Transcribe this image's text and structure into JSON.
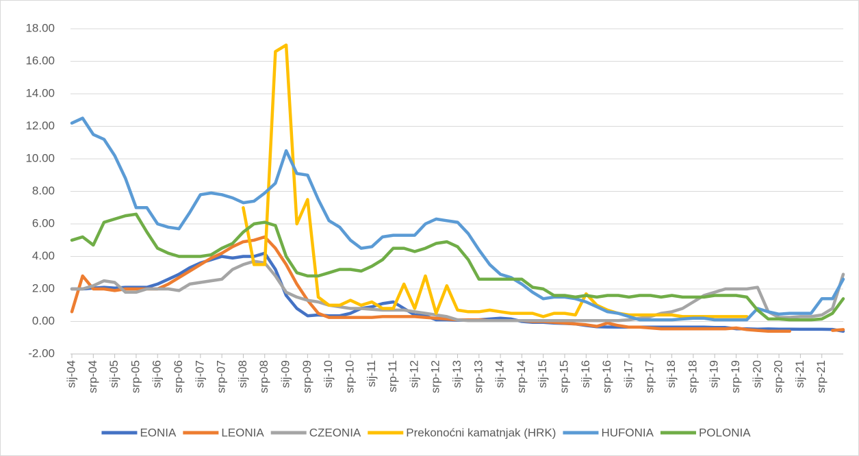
{
  "chart_data": {
    "type": "line",
    "categories": [
      "sij-04",
      null,
      "srp-04",
      null,
      "sij-05",
      null,
      "srp-05",
      null,
      "sij-06",
      null,
      "srp-06",
      null,
      "sij-07",
      null,
      "srp-07",
      null,
      "sij-08",
      null,
      "srp-08",
      null,
      "sij-09",
      null,
      "srp-09",
      null,
      "sij-10",
      null,
      "srp-10",
      null,
      "sij-11",
      null,
      "srp-11",
      null,
      "sij-12",
      null,
      "srp-12",
      null,
      "sij-13",
      null,
      "srp-13",
      null,
      "sij-14",
      null,
      "srp-14",
      null,
      "sij-15",
      null,
      "srp-15",
      null,
      "sij-16",
      null,
      "srp-16",
      null,
      "sij-17",
      null,
      "srp-17",
      null,
      "sij-18",
      null,
      "srp-18",
      null,
      "sij-19",
      null,
      "srp-19",
      null,
      "sij-20",
      null,
      "srp-20",
      null,
      "sij-21",
      null,
      "srp-21",
      null,
      null
    ],
    "series": [
      {
        "name": "EONIA",
        "color": "#4472c4",
        "values": [
          2.0,
          2.0,
          2.05,
          2.1,
          2.05,
          2.1,
          2.1,
          2.1,
          2.3,
          2.6,
          2.9,
          3.3,
          3.6,
          3.8,
          4.0,
          3.9,
          4.0,
          4.0,
          4.2,
          3.2,
          1.6,
          0.8,
          0.35,
          0.4,
          0.35,
          0.35,
          0.5,
          0.8,
          0.9,
          1.1,
          1.2,
          0.8,
          0.4,
          0.35,
          0.1,
          0.1,
          0.07,
          0.08,
          0.1,
          0.15,
          0.2,
          0.15,
          0.0,
          -0.05,
          -0.05,
          -0.1,
          -0.12,
          -0.15,
          -0.25,
          -0.33,
          -0.34,
          -0.35,
          -0.35,
          -0.35,
          -0.35,
          -0.35,
          -0.35,
          -0.35,
          -0.35,
          -0.35,
          -0.37,
          -0.37,
          -0.45,
          -0.45,
          -0.47,
          -0.46,
          -0.47,
          -0.47,
          -0.48,
          -0.48,
          -0.48,
          -0.49,
          -0.6
        ]
      },
      {
        "name": "LEONIA",
        "color": "#ed7d31",
        "values": [
          0.6,
          2.8,
          2.0,
          2.0,
          1.9,
          2.0,
          2.0,
          2.0,
          2.0,
          2.3,
          2.7,
          3.1,
          3.5,
          3.9,
          4.2,
          4.6,
          4.9,
          5.0,
          5.2,
          4.5,
          3.5,
          2.3,
          1.3,
          0.5,
          0.25,
          0.25,
          0.25,
          0.25,
          0.25,
          0.3,
          0.3,
          0.3,
          0.3,
          0.25,
          0.2,
          0.15,
          0.1,
          0.1,
          0.1,
          0.05,
          0.05,
          0.05,
          0.05,
          0,
          0,
          -0.05,
          -0.1,
          -0.15,
          -0.2,
          -0.3,
          -0.1,
          -0.25,
          -0.35,
          -0.35,
          -0.4,
          -0.45,
          -0.45,
          -0.45,
          -0.45,
          -0.45,
          -0.45,
          -0.45,
          -0.4,
          -0.5,
          -0.55,
          -0.6,
          -0.6,
          -0.6,
          null,
          null,
          null,
          -0.55,
          -0.5
        ]
      },
      {
        "name": "CZEONIA",
        "color": "#a5a5a5",
        "values": [
          2.0,
          2.0,
          2.2,
          2.5,
          2.4,
          1.8,
          1.8,
          2.0,
          2.0,
          2.0,
          1.9,
          2.3,
          2.4,
          2.5,
          2.6,
          3.2,
          3.5,
          3.7,
          3.6,
          2.8,
          1.8,
          1.5,
          1.3,
          1.2,
          1.0,
          0.9,
          0.8,
          0.8,
          0.75,
          0.7,
          0.7,
          0.7,
          0.6,
          0.5,
          0.4,
          0.3,
          0.1,
          0.05,
          0.05,
          0.05,
          0.05,
          0.05,
          0.05,
          0.05,
          0.05,
          0.05,
          0.05,
          0.05,
          0.05,
          0.05,
          0.05,
          0.05,
          0.1,
          0.2,
          0.3,
          0.5,
          0.6,
          0.8,
          1.2,
          1.6,
          1.8,
          2.0,
          2.0,
          2.0,
          2.1,
          0.6,
          0.25,
          0.25,
          0.3,
          0.3,
          0.4,
          0.8,
          2.9
        ]
      },
      {
        "name": "Prekonoćni kamatnjak (HRK)",
        "color": "#ffc000",
        "values": [
          null,
          null,
          null,
          null,
          null,
          null,
          null,
          null,
          null,
          null,
          null,
          null,
          null,
          null,
          null,
          null,
          7.0,
          3.5,
          3.5,
          16.6,
          17.0,
          6.0,
          7.5,
          1.5,
          1.0,
          1.0,
          1.3,
          1.0,
          1.2,
          0.8,
          0.8,
          2.3,
          0.8,
          2.8,
          0.5,
          2.2,
          0.7,
          0.6,
          0.6,
          0.7,
          0.6,
          0.5,
          0.5,
          0.5,
          0.3,
          0.5,
          0.5,
          0.4,
          1.7,
          1.0,
          0.7,
          0.5,
          0.4,
          0.4,
          0.4,
          0.4,
          0.4,
          0.3,
          0.3,
          0.3,
          0.3,
          0.3,
          0.3,
          0.3,
          null,
          null,
          null,
          null,
          null,
          null,
          null,
          null,
          null
        ]
      },
      {
        "name": "HUFONIA",
        "color": "#5b9bd5",
        "values": [
          12.2,
          12.5,
          11.5,
          11.2,
          10.2,
          8.8,
          7.0,
          7.0,
          6.0,
          5.8,
          5.7,
          6.7,
          7.8,
          7.9,
          7.8,
          7.6,
          7.3,
          7.4,
          7.9,
          8.5,
          10.5,
          9.1,
          9.0,
          7.5,
          6.2,
          5.8,
          5.0,
          4.5,
          4.6,
          5.2,
          5.3,
          5.3,
          5.3,
          6.0,
          6.3,
          6.2,
          6.1,
          5.4,
          4.4,
          3.5,
          2.9,
          2.7,
          2.3,
          1.8,
          1.4,
          1.5,
          1.5,
          1.4,
          1.2,
          0.9,
          0.6,
          0.5,
          0.3,
          0.1,
          0.1,
          0.1,
          0.1,
          0.15,
          0.2,
          0.2,
          0.1,
          0.1,
          0.1,
          0.1,
          0.8,
          0.6,
          0.45,
          0.5,
          0.5,
          0.5,
          1.4,
          1.4,
          2.6
        ]
      },
      {
        "name": "POLONIA",
        "color": "#70ad47",
        "values": [
          5.0,
          5.2,
          4.7,
          6.1,
          6.3,
          6.5,
          6.6,
          5.5,
          4.5,
          4.2,
          4.0,
          4.0,
          4.0,
          4.1,
          4.5,
          4.8,
          5.5,
          6.0,
          6.1,
          5.9,
          4.0,
          3.0,
          2.8,
          2.8,
          3.0,
          3.2,
          3.2,
          3.1,
          3.4,
          3.8,
          4.5,
          4.5,
          4.3,
          4.5,
          4.8,
          4.9,
          4.6,
          3.8,
          2.6,
          2.6,
          2.6,
          2.6,
          2.6,
          2.1,
          2.0,
          1.6,
          1.6,
          1.5,
          1.6,
          1.5,
          1.6,
          1.6,
          1.5,
          1.6,
          1.6,
          1.5,
          1.6,
          1.5,
          1.5,
          1.5,
          1.6,
          1.6,
          1.6,
          1.5,
          0.7,
          0.15,
          0.15,
          0.1,
          0.1,
          0.1,
          0.15,
          0.5,
          1.4
        ]
      }
    ],
    "ylim": [
      -2,
      18
    ],
    "yticks": [
      {
        "value": -2,
        "label": "-2.00"
      },
      {
        "value": 0,
        "label": "0.00"
      },
      {
        "value": 2,
        "label": "2.00"
      },
      {
        "value": 4,
        "label": "4.00"
      },
      {
        "value": 6,
        "label": "6.00"
      },
      {
        "value": 8,
        "label": "8.00"
      },
      {
        "value": 10,
        "label": "10.00"
      },
      {
        "value": 12,
        "label": "12.00"
      },
      {
        "value": 14,
        "label": "14.00"
      },
      {
        "value": 16,
        "label": "16.00"
      },
      {
        "value": 18,
        "label": "18.00"
      }
    ],
    "grid": true,
    "legend": "bottom"
  }
}
